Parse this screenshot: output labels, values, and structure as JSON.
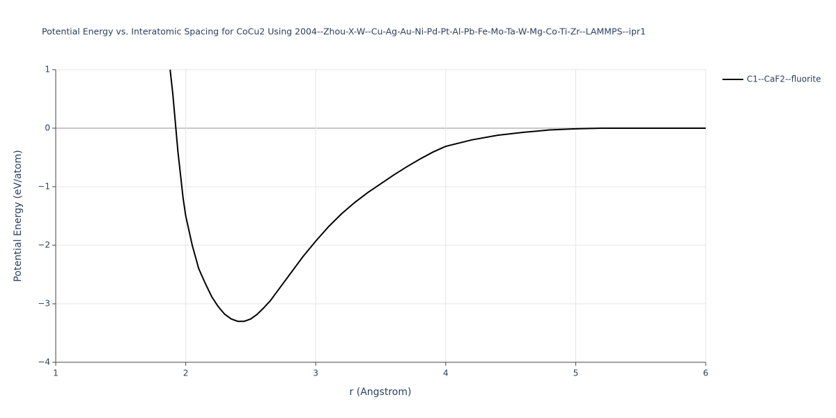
{
  "chart_data": {
    "type": "line",
    "title": "Potential Energy vs. Interatomic Spacing for CoCu2 Using 2004--Zhou-X-W--Cu-Ag-Au-Ni-Pd-Pt-Al-Pb-Fe-Mo-Ta-W-Mg-Co-Ti-Zr--LAMMPS--ipr1",
    "x_label": "r (Angstrom)",
    "y_label": "Potential Energy (eV/atom)",
    "x": [
      1.88,
      1.9,
      1.92,
      1.94,
      1.96,
      1.98,
      2.0,
      2.05,
      2.1,
      2.15,
      2.2,
      2.25,
      2.3,
      2.35,
      2.4,
      2.45,
      2.5,
      2.55,
      2.6,
      2.65,
      2.7,
      2.8,
      2.9,
      3.0,
      3.1,
      3.2,
      3.3,
      3.4,
      3.5,
      3.6,
      3.7,
      3.8,
      3.9,
      4.0,
      4.2,
      4.4,
      4.6,
      4.8,
      5.0,
      5.2,
      5.5,
      6.0
    ],
    "series": [
      {
        "name": "C1--CaF2--fluorite",
        "color": "#000000",
        "values": [
          1.0,
          0.6,
          0.1,
          -0.4,
          -0.8,
          -1.2,
          -1.5,
          -2.0,
          -2.4,
          -2.65,
          -2.88,
          -3.05,
          -3.18,
          -3.26,
          -3.3,
          -3.3,
          -3.26,
          -3.18,
          -3.07,
          -2.95,
          -2.8,
          -2.5,
          -2.2,
          -1.93,
          -1.68,
          -1.46,
          -1.27,
          -1.1,
          -0.95,
          -0.8,
          -0.66,
          -0.53,
          -0.41,
          -0.31,
          -0.2,
          -0.12,
          -0.07,
          -0.03,
          -0.01,
          0,
          0,
          0
        ]
      }
    ],
    "xlim": [
      1,
      6
    ],
    "xticks": [
      1,
      2,
      3,
      4,
      5,
      6
    ],
    "ylim": [
      -4,
      1
    ],
    "yticks": [
      {
        "value": -4,
        "label": "−4"
      },
      {
        "value": -3,
        "label": "−3"
      },
      {
        "value": -2,
        "label": "−2"
      },
      {
        "value": -1,
        "label": "−1"
      },
      0,
      1
    ],
    "grid": true
  }
}
